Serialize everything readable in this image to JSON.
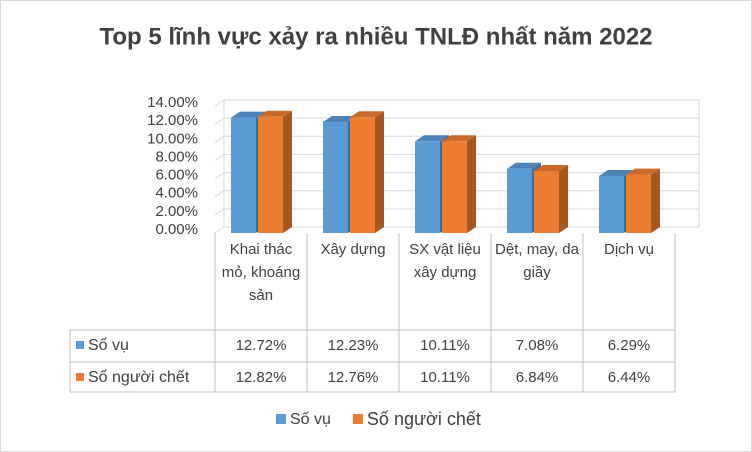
{
  "chart_data": {
    "type": "bar3d",
    "title": "Top 5 lĩnh vực xảy ra nhiều TNLĐ nhất năm 2022",
    "categories": [
      "Khai thác mỏ, khoáng sản",
      "Xây dựng",
      "SX vật liệu xây dựng",
      "Dệt, may, da giầy",
      "Dịch vụ"
    ],
    "series": [
      {
        "name": "Số vụ",
        "color": "#5b9bd5",
        "values": [
          12.72,
          12.23,
          10.11,
          7.08,
          6.29
        ],
        "value_labels": [
          "12.72%",
          "12.23%",
          "10.11%",
          "7.08%",
          "6.29%"
        ]
      },
      {
        "name": "Số người chết",
        "color": "#ed7d31",
        "values": [
          12.82,
          12.76,
          10.11,
          6.84,
          6.44
        ],
        "value_labels": [
          "12.82%",
          "12.76%",
          "10.11%",
          "6.84%",
          "6.44%"
        ]
      }
    ],
    "ylim": [
      0,
      14
    ],
    "yticks": [
      {
        "value": 0,
        "label": "0.00%"
      },
      {
        "value": 2,
        "label": "2.00%"
      },
      {
        "value": 4,
        "label": "4.00%"
      },
      {
        "value": 6,
        "label": "6.00%"
      },
      {
        "value": 8,
        "label": "8.00%"
      },
      {
        "value": 10,
        "label": "10.00%"
      },
      {
        "value": 12,
        "label": "12.00%"
      },
      {
        "value": 14,
        "label": "14.00%"
      }
    ],
    "grid": true,
    "legend": "bottom"
  }
}
